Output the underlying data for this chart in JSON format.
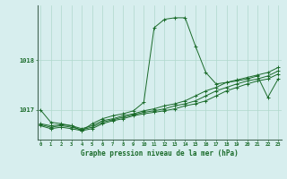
{
  "title": "Graphe pression niveau de la mer (hPa)",
  "background_color": "#d7eeee",
  "grid_color": "#b0d8cc",
  "line_color": "#1a6b2a",
  "x_ticks": [
    0,
    1,
    2,
    3,
    4,
    5,
    6,
    7,
    8,
    9,
    10,
    11,
    12,
    13,
    14,
    15,
    16,
    17,
    18,
    19,
    20,
    21,
    22,
    23
  ],
  "y_ticks": [
    1017,
    1018
  ],
  "xlim": [
    -0.3,
    23.3
  ],
  "ylim": [
    1016.4,
    1019.1
  ],
  "series": [
    [
      1017.0,
      1016.75,
      1016.72,
      1016.68,
      1016.58,
      1016.72,
      1016.82,
      1016.88,
      1016.92,
      1016.98,
      1017.15,
      1018.65,
      1018.82,
      1018.85,
      1018.85,
      1018.28,
      1017.75,
      1017.52,
      1017.55,
      1017.58,
      1017.62,
      1017.68,
      1017.25,
      1017.62
    ],
    [
      1016.72,
      1016.68,
      1016.7,
      1016.68,
      1016.62,
      1016.68,
      1016.78,
      1016.82,
      1016.88,
      1016.92,
      1016.98,
      1017.02,
      1017.08,
      1017.12,
      1017.18,
      1017.28,
      1017.38,
      1017.45,
      1017.55,
      1017.6,
      1017.65,
      1017.7,
      1017.75,
      1017.85
    ],
    [
      1016.7,
      1016.65,
      1016.68,
      1016.65,
      1016.6,
      1016.65,
      1016.75,
      1016.8,
      1016.85,
      1016.9,
      1016.95,
      1016.98,
      1017.02,
      1017.08,
      1017.12,
      1017.18,
      1017.28,
      1017.38,
      1017.45,
      1017.52,
      1017.58,
      1017.62,
      1017.68,
      1017.78
    ],
    [
      1016.68,
      1016.62,
      1016.65,
      1016.62,
      1016.58,
      1016.62,
      1016.72,
      1016.78,
      1016.82,
      1016.88,
      1016.92,
      1016.95,
      1016.98,
      1017.02,
      1017.08,
      1017.12,
      1017.18,
      1017.28,
      1017.38,
      1017.45,
      1017.52,
      1017.58,
      1017.62,
      1017.72
    ]
  ]
}
